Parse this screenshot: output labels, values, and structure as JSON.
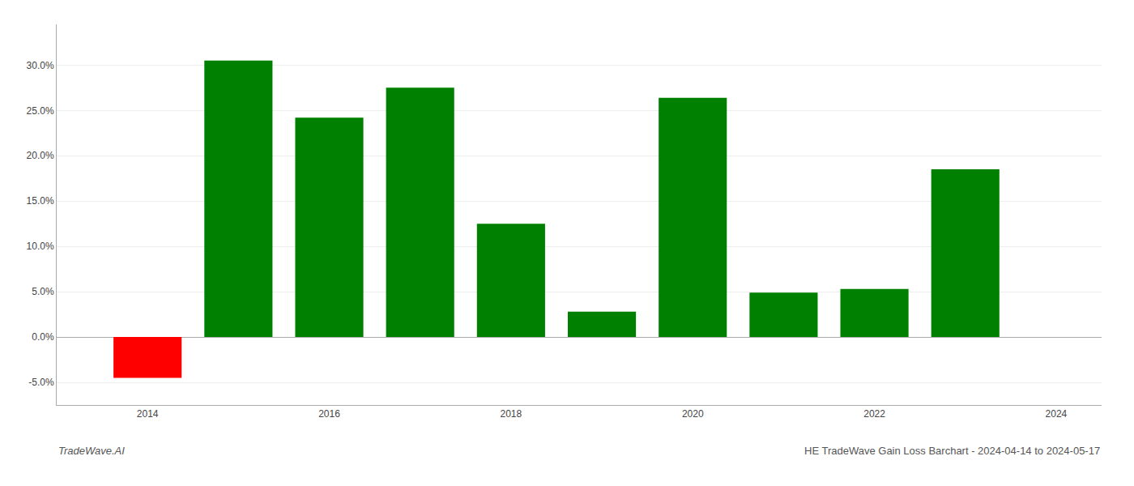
{
  "chart_data": {
    "type": "bar",
    "x": [
      2014,
      2015,
      2016,
      2017,
      2018,
      2019,
      2020,
      2021,
      2022,
      2023
    ],
    "values": [
      -0.045,
      0.305,
      0.242,
      0.275,
      0.125,
      0.028,
      0.264,
      0.049,
      0.053,
      0.185
    ],
    "colors": [
      "#ff0000",
      "#008000",
      "#008000",
      "#008000",
      "#008000",
      "#008000",
      "#008000",
      "#008000",
      "#008000",
      "#008000"
    ],
    "xlim": [
      2013.0,
      2024.5
    ],
    "xticks": [
      2014,
      2016,
      2018,
      2020,
      2022,
      2024
    ],
    "ylim": [
      -0.075,
      0.345
    ],
    "yticks": [
      {
        "value": -0.05,
        "label": "-5.0%"
      },
      {
        "value": 0.0,
        "label": "0.0%"
      },
      {
        "value": 0.05,
        "label": "5.0%"
      },
      {
        "value": 0.1,
        "label": "10.0%"
      },
      {
        "value": 0.15,
        "label": "15.0%"
      },
      {
        "value": 0.2,
        "label": "20.0%"
      },
      {
        "value": 0.25,
        "label": "25.0%"
      },
      {
        "value": 0.3,
        "label": "30.0%"
      }
    ],
    "grid": true,
    "annotations": [
      "TradeWave.AI",
      "HE TradeWave Gain Loss Barchart - 2024-04-14 to 2024-05-17"
    ]
  }
}
